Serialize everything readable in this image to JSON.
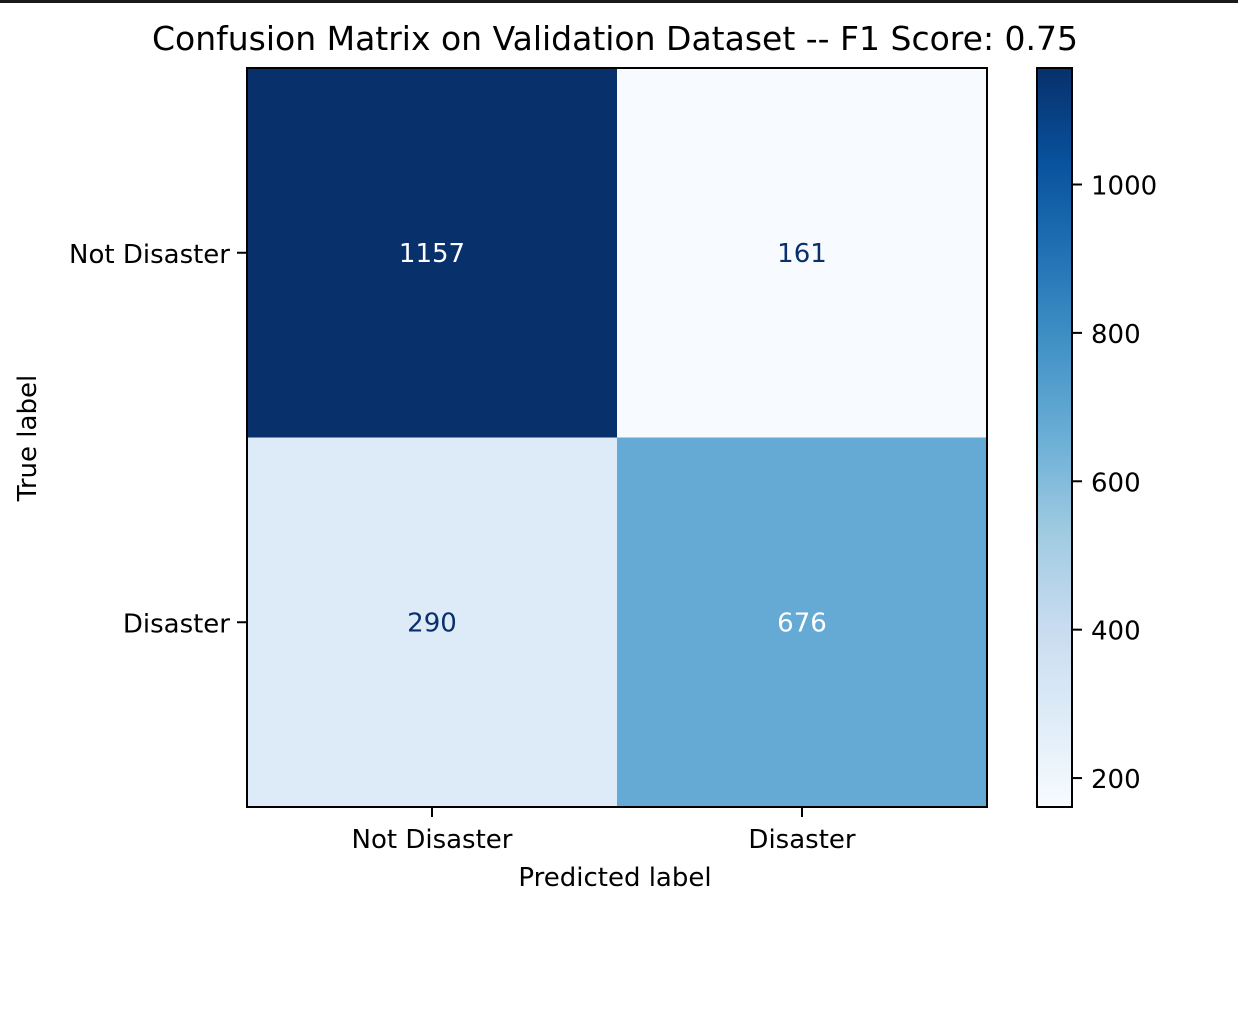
{
  "chart_data": {
    "type": "heatmap",
    "title": "Confusion Matrix on Validation Dataset -- F1 Score: 0.75",
    "xlabel": "Predicted label",
    "ylabel": "True label",
    "x_categories": [
      "Not Disaster",
      "Disaster"
    ],
    "y_categories": [
      "Not Disaster",
      "Disaster"
    ],
    "matrix": [
      [
        1157,
        161
      ],
      [
        290,
        676
      ]
    ],
    "cell_labels": [
      [
        "1157",
        "161"
      ],
      [
        "290",
        "676"
      ]
    ],
    "colormap": "Blues",
    "colorbar": {
      "range": [
        161,
        1157
      ],
      "ticks": [
        200,
        400,
        600,
        800,
        1000
      ],
      "tick_labels": [
        "200",
        "400",
        "600",
        "800",
        "1000"
      ]
    },
    "grid": false
  },
  "colors": {
    "dark_text": "#08306b",
    "light_text": "#ffffff",
    "axis": "#000000"
  }
}
